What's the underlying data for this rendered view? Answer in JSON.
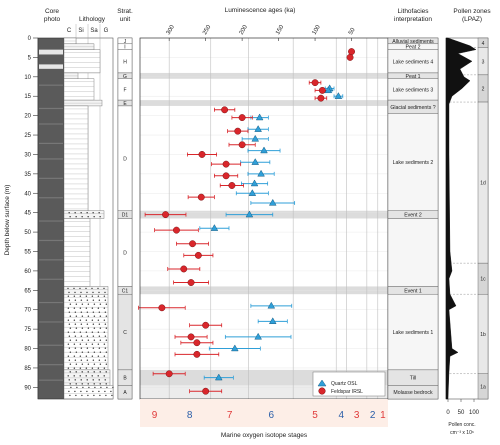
{
  "headers": {
    "core_photo": [
      "Core",
      "photo"
    ],
    "lithology": "Lithology",
    "lith_cols": [
      "C",
      "Si",
      "Sa",
      "G"
    ],
    "strat": [
      "Strat.",
      "unit"
    ],
    "lum_title": "Luminescence ages (ka)",
    "lithofacies": [
      "Lithofacies",
      "interpretation"
    ],
    "pollen": [
      "Pollen zones",
      "(LPAZ)"
    ],
    "ylabel": "Depth below surface (m)",
    "xlabel": "Marine oxygen isotope stages",
    "pollen_xlabel": [
      "Pollen conc.",
      "cm⁻³ x 10⁶"
    ],
    "pollen_ticks": [
      "0",
      "50",
      "100"
    ]
  },
  "legend": {
    "quartz": "Quartz OSL",
    "feldspar": "Feldspar IRSL"
  },
  "colors": {
    "quartz": "#2f9fd8",
    "feldspar": "#d9262b",
    "band": "#dcdcdc",
    "mis_odd": "#e03a3a",
    "mis_even": "#2a5ea8"
  },
  "strat_units": [
    {
      "label": "J",
      "top": 0,
      "bot": 1.5
    },
    {
      "label": "I",
      "top": 1.5,
      "bot": 3
    },
    {
      "label": "H",
      "top": 3,
      "bot": 9
    },
    {
      "label": "G",
      "top": 9,
      "bot": 10.5
    },
    {
      "label": "F",
      "top": 10.5,
      "bot": 16
    },
    {
      "label": "E",
      "top": 16,
      "bot": 17.5
    },
    {
      "label": "D",
      "top": 17.5,
      "bot": 44.5
    },
    {
      "label": "D1",
      "top": 44.5,
      "bot": 46.5
    },
    {
      "label": "D",
      "top": 46.5,
      "bot": 64
    },
    {
      "label": "C1",
      "top": 64,
      "bot": 66
    },
    {
      "label": "C",
      "top": 66,
      "bot": 85.5
    },
    {
      "label": "B",
      "top": 85.5,
      "bot": 89.5
    },
    {
      "label": "A",
      "top": 89.5,
      "bot": 93
    }
  ],
  "facies": [
    {
      "label": "Alluvial sediments",
      "top": 0,
      "bot": 1.5
    },
    {
      "label": "Peat 2",
      "top": 1.5,
      "bot": 3
    },
    {
      "label": "Lake sediments 4",
      "top": 3,
      "bot": 9
    },
    {
      "label": "Peat 1",
      "top": 9,
      "bot": 10.5
    },
    {
      "label": "Lake sediments 3",
      "top": 10.5,
      "bot": 16
    },
    {
      "label": "Glacial sediments ?",
      "top": 16,
      "bot": 19.5
    },
    {
      "label": "Lake sediments 2",
      "top": 19.5,
      "bot": 44.5
    },
    {
      "label": "Event 2",
      "top": 44.5,
      "bot": 46.5
    },
    {
      "label": "",
      "top": 46.5,
      "bot": 64
    },
    {
      "label": "Event 1",
      "top": 64,
      "bot": 66
    },
    {
      "label": "Lake sediments 1",
      "top": 66,
      "bot": 85.5
    },
    {
      "label": "Till",
      "top": 85.5,
      "bot": 89.5
    },
    {
      "label": "Molasse bedrock",
      "top": 89.5,
      "bot": 93
    }
  ],
  "pollen_zones": [
    {
      "label": "4",
      "top": 0,
      "bot": 2.5
    },
    {
      "label": "3",
      "top": 2.5,
      "bot": 9.5
    },
    {
      "label": "2",
      "top": 9.5,
      "bot": 16.5
    },
    {
      "label": "1d",
      "top": 16.5,
      "bot": 58
    },
    {
      "label": "1c",
      "top": 58,
      "bot": 66
    },
    {
      "label": "1b",
      "top": 66,
      "bot": 86.5
    },
    {
      "label": "1a",
      "top": 86.5,
      "bot": 93
    }
  ],
  "chart_data": {
    "type": "scatter",
    "title": "Luminescence ages (ka)",
    "ylabel": "Depth below surface (m)",
    "xlabel": "Marine oxygen isotope stages",
    "x_reversed": true,
    "xlim": [
      340,
      0
    ],
    "ylim": [
      0,
      93
    ],
    "x_ticks": [
      300,
      250,
      200,
      150,
      100,
      50
    ],
    "y_ticks": [
      0,
      5,
      10,
      15,
      20,
      25,
      30,
      35,
      40,
      45,
      50,
      55,
      60,
      65,
      70,
      75,
      80,
      85,
      90
    ],
    "grey_bands_depth": [
      [
        9,
        10.5
      ],
      [
        16,
        17.5
      ],
      [
        44.5,
        46.5
      ],
      [
        64,
        66
      ],
      [
        85.5,
        89.5
      ]
    ],
    "mis_boundaries_ka": [
      14,
      29,
      57,
      71,
      130,
      191,
      243,
      300
    ],
    "mis_labels": [
      {
        "label": "1",
        "ka": 7,
        "odd": true
      },
      {
        "label": "2",
        "ka": 21,
        "odd": false
      },
      {
        "label": "3",
        "ka": 43,
        "odd": true
      },
      {
        "label": "4",
        "ka": 64,
        "odd": false
      },
      {
        "label": "5",
        "ka": 100,
        "odd": true
      },
      {
        "label": "6",
        "ka": 160,
        "odd": false
      },
      {
        "label": "7",
        "ka": 217,
        "odd": true
      },
      {
        "label": "8",
        "ka": 272,
        "odd": false
      },
      {
        "label": "9",
        "ka": 320,
        "odd": true
      }
    ],
    "series": [
      {
        "name": "Quartz OSL",
        "marker": "triangle",
        "points": [
          {
            "depth": 13.0,
            "age": 80,
            "err": 6
          },
          {
            "depth": 15.0,
            "age": 68,
            "err": 6
          },
          {
            "depth": 20.5,
            "age": 176,
            "err": 12
          },
          {
            "depth": 23.5,
            "age": 178,
            "err": 14
          },
          {
            "depth": 26.0,
            "age": 182,
            "err": 18
          },
          {
            "depth": 29.0,
            "age": 170,
            "err": 22
          },
          {
            "depth": 32.0,
            "age": 182,
            "err": 20
          },
          {
            "depth": 35.0,
            "age": 174,
            "err": 18
          },
          {
            "depth": 37.5,
            "age": 183,
            "err": 18
          },
          {
            "depth": 40.0,
            "age": 186,
            "err": 22
          },
          {
            "depth": 42.5,
            "age": 158,
            "err": 30
          },
          {
            "depth": 45.5,
            "age": 190,
            "err": 32
          },
          {
            "depth": 49.0,
            "age": 238,
            "err": 20
          },
          {
            "depth": 69.0,
            "age": 160,
            "err": 28
          },
          {
            "depth": 73.0,
            "age": 158,
            "err": 20
          },
          {
            "depth": 77.0,
            "age": 178,
            "err": 45
          },
          {
            "depth": 80.0,
            "age": 210,
            "err": 35
          },
          {
            "depth": 87.5,
            "age": 232,
            "err": 20
          },
          {
            "depth": 13.5,
            "age": 82,
            "err": 5
          }
        ]
      },
      {
        "name": "Feldspar IRSL",
        "marker": "circle",
        "points": [
          {
            "depth": 3.5,
            "age": 50,
            "err": 3
          },
          {
            "depth": 5.0,
            "age": 52,
            "err": 3
          },
          {
            "depth": 11.5,
            "age": 100,
            "err": 8
          },
          {
            "depth": 13.5,
            "age": 90,
            "err": 10
          },
          {
            "depth": 15.5,
            "age": 92,
            "err": 8
          },
          {
            "depth": 18.5,
            "age": 224,
            "err": 14
          },
          {
            "depth": 20.5,
            "age": 200,
            "err": 14
          },
          {
            "depth": 24.0,
            "age": 206,
            "err": 14
          },
          {
            "depth": 27.5,
            "age": 200,
            "err": 18
          },
          {
            "depth": 30.0,
            "age": 255,
            "err": 20
          },
          {
            "depth": 32.5,
            "age": 222,
            "err": 20
          },
          {
            "depth": 35.5,
            "age": 222,
            "err": 16
          },
          {
            "depth": 38.0,
            "age": 214,
            "err": 16
          },
          {
            "depth": 41.0,
            "age": 256,
            "err": 18
          },
          {
            "depth": 45.5,
            "age": 305,
            "err": 28
          },
          {
            "depth": 49.5,
            "age": 290,
            "err": 30
          },
          {
            "depth": 53.0,
            "age": 268,
            "err": 22
          },
          {
            "depth": 56.0,
            "age": 260,
            "err": 20
          },
          {
            "depth": 59.5,
            "age": 280,
            "err": 22
          },
          {
            "depth": 63.0,
            "age": 270,
            "err": 24
          },
          {
            "depth": 69.5,
            "age": 310,
            "err": 32
          },
          {
            "depth": 74.0,
            "age": 250,
            "err": 22
          },
          {
            "depth": 78.5,
            "age": 262,
            "err": 22
          },
          {
            "depth": 81.5,
            "age": 262,
            "err": 30
          },
          {
            "depth": 86.5,
            "age": 300,
            "err": 22
          },
          {
            "depth": 91.0,
            "age": 250,
            "err": 22
          },
          {
            "depth": 77.0,
            "age": 270,
            "err": 22
          }
        ]
      }
    ]
  }
}
